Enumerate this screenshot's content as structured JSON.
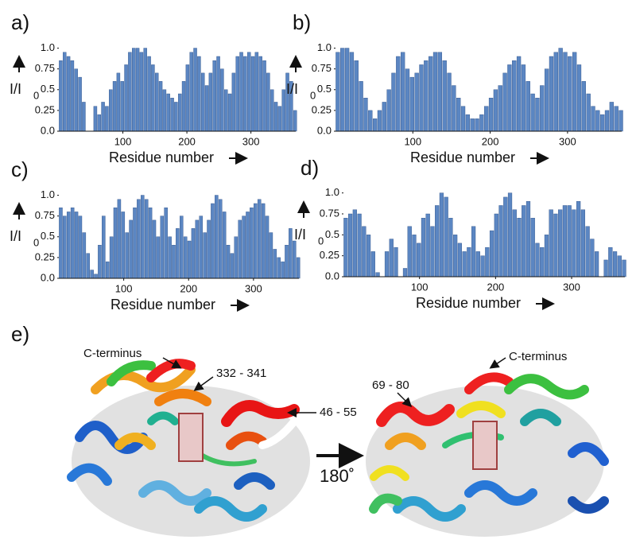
{
  "chart_data": [
    {
      "type": "bar",
      "label": "a)",
      "xlabel": "Residue number",
      "ylabel": "I/I",
      "ylabel_sub": "0",
      "color": "#5b86c2",
      "x": [
        3,
        9,
        15,
        21,
        27,
        33,
        39,
        45,
        51,
        57,
        63,
        69,
        75,
        81,
        87,
        93,
        99,
        105,
        111,
        117,
        123,
        129,
        135,
        141,
        147,
        153,
        159,
        165,
        171,
        177,
        183,
        189,
        195,
        201,
        207,
        213,
        219,
        225,
        231,
        237,
        243,
        249,
        255,
        261,
        267,
        273,
        279,
        285,
        291,
        297,
        303,
        309,
        315,
        321,
        327,
        333,
        339,
        345,
        351,
        357,
        363,
        369
      ],
      "values": [
        0.85,
        0.95,
        0.9,
        0.85,
        0.75,
        0.65,
        0.35,
        null,
        null,
        0.3,
        0.2,
        0.35,
        0.3,
        0.5,
        0.6,
        0.7,
        0.6,
        0.8,
        0.95,
        1.0,
        1.0,
        0.95,
        1.0,
        0.9,
        0.8,
        0.7,
        0.6,
        0.5,
        0.45,
        0.4,
        0.35,
        0.45,
        0.6,
        0.8,
        0.95,
        1.0,
        0.9,
        0.7,
        0.55,
        0.7,
        0.85,
        0.9,
        0.75,
        0.5,
        0.45,
        0.7,
        0.9,
        0.95,
        0.9,
        0.95,
        0.9,
        0.95,
        0.9,
        0.85,
        0.7,
        0.5,
        0.35,
        0.3,
        0.5,
        0.7,
        0.6,
        0.25
      ],
      "xlim": [
        0,
        370
      ],
      "xticks": [
        100,
        200,
        300
      ],
      "ylim": [
        0,
        1.12
      ],
      "yticks": [
        {
          "value": 0,
          "label": "0.0"
        },
        0.25,
        0.5,
        0.75,
        {
          "value": 1,
          "label": "1.0"
        }
      ]
    },
    {
      "type": "bar",
      "label": "b)",
      "xlabel": "Residue number",
      "ylabel": "I/I",
      "ylabel_sub": "0",
      "color": "#5b86c2",
      "x": [
        3,
        9,
        15,
        21,
        27,
        33,
        39,
        45,
        51,
        57,
        63,
        69,
        75,
        81,
        87,
        93,
        99,
        105,
        111,
        117,
        123,
        129,
        135,
        141,
        147,
        153,
        159,
        165,
        171,
        177,
        183,
        189,
        195,
        201,
        207,
        213,
        219,
        225,
        231,
        237,
        243,
        249,
        255,
        261,
        267,
        273,
        279,
        285,
        291,
        297,
        303,
        309,
        315,
        321,
        327,
        333,
        339,
        345,
        351,
        357,
        363,
        369
      ],
      "values": [
        0.95,
        1.0,
        1.0,
        0.95,
        0.85,
        0.6,
        0.4,
        0.25,
        0.15,
        0.25,
        0.35,
        0.5,
        0.7,
        0.9,
        0.95,
        0.75,
        0.65,
        0.7,
        0.8,
        0.85,
        0.9,
        0.95,
        0.95,
        0.85,
        0.7,
        0.55,
        0.4,
        0.3,
        0.2,
        0.15,
        0.15,
        0.2,
        0.3,
        0.4,
        0.5,
        0.55,
        0.7,
        0.8,
        0.85,
        0.9,
        0.8,
        0.6,
        0.45,
        0.4,
        0.55,
        0.75,
        0.9,
        0.95,
        1.0,
        0.95,
        0.9,
        0.95,
        0.8,
        0.6,
        0.45,
        0.3,
        0.25,
        0.2,
        0.25,
        0.35,
        0.3,
        0.25
      ],
      "xlim": [
        0,
        370
      ],
      "xticks": [
        100,
        200,
        300
      ],
      "ylim": [
        0,
        1.12
      ],
      "yticks": [
        {
          "value": 0,
          "label": "0.0"
        },
        0.25,
        0.5,
        0.75,
        {
          "value": 1,
          "label": "1.0"
        }
      ]
    },
    {
      "type": "bar",
      "label": "c)",
      "xlabel": "Residue number",
      "ylabel": "I/I",
      "ylabel_sub": "0",
      "color": "#5b86c2",
      "x": [
        3,
        9,
        15,
        21,
        27,
        33,
        39,
        45,
        51,
        57,
        63,
        69,
        75,
        81,
        87,
        93,
        99,
        105,
        111,
        117,
        123,
        129,
        135,
        141,
        147,
        153,
        159,
        165,
        171,
        177,
        183,
        189,
        195,
        201,
        207,
        213,
        219,
        225,
        231,
        237,
        243,
        249,
        255,
        261,
        267,
        273,
        279,
        285,
        291,
        297,
        303,
        309,
        315,
        321,
        327,
        333,
        339,
        345,
        351,
        357,
        363,
        369
      ],
      "values": [
        0.85,
        0.75,
        0.8,
        0.85,
        0.8,
        0.75,
        0.55,
        0.3,
        0.1,
        0.05,
        0.4,
        0.75,
        0.2,
        0.5,
        0.85,
        0.95,
        0.8,
        0.55,
        0.7,
        0.85,
        0.95,
        1.0,
        0.95,
        0.85,
        0.7,
        0.5,
        0.75,
        0.85,
        0.5,
        0.4,
        0.6,
        0.75,
        0.5,
        0.45,
        0.6,
        0.7,
        0.75,
        0.55,
        0.7,
        0.9,
        1.0,
        0.95,
        0.8,
        0.4,
        0.3,
        0.5,
        0.7,
        0.75,
        0.8,
        0.85,
        0.9,
        0.95,
        0.9,
        0.75,
        0.55,
        0.35,
        0.25,
        0.2,
        0.4,
        0.6,
        0.45,
        0.25
      ],
      "xlim": [
        0,
        370
      ],
      "xticks": [
        100,
        200,
        300
      ],
      "ylim": [
        0,
        1.12
      ],
      "yticks": [
        {
          "value": 0,
          "label": "0.0"
        },
        0.25,
        0.5,
        0.75,
        {
          "value": 1,
          "label": "1.0"
        }
      ]
    },
    {
      "type": "bar",
      "label": "d)",
      "xlabel": "Residue number",
      "ylabel": "I/I",
      "ylabel_sub": "0",
      "color": "#5b86c2",
      "x": [
        3,
        9,
        15,
        21,
        27,
        33,
        39,
        45,
        51,
        57,
        63,
        69,
        75,
        81,
        87,
        93,
        99,
        105,
        111,
        117,
        123,
        129,
        135,
        141,
        147,
        153,
        159,
        165,
        171,
        177,
        183,
        189,
        195,
        201,
        207,
        213,
        219,
        225,
        231,
        237,
        243,
        249,
        255,
        261,
        267,
        273,
        279,
        285,
        291,
        297,
        303,
        309,
        315,
        321,
        327,
        333,
        339,
        345,
        351,
        357,
        363,
        369
      ],
      "values": [
        0.7,
        0.75,
        0.8,
        0.75,
        0.6,
        0.5,
        0.3,
        0.05,
        null,
        0.3,
        0.45,
        0.35,
        null,
        0.1,
        0.6,
        0.5,
        0.4,
        0.7,
        0.75,
        0.6,
        0.85,
        1.0,
        0.95,
        0.7,
        0.5,
        0.4,
        0.3,
        0.35,
        0.6,
        0.3,
        0.25,
        0.35,
        0.55,
        0.75,
        0.85,
        0.95,
        1.0,
        0.8,
        0.7,
        0.85,
        0.9,
        0.7,
        0.4,
        0.35,
        0.5,
        0.8,
        0.75,
        0.8,
        0.85,
        0.85,
        0.8,
        0.9,
        0.8,
        0.6,
        0.45,
        0.3,
        null,
        0.2,
        0.35,
        0.3,
        0.25,
        0.2
      ],
      "xlim": [
        0,
        370
      ],
      "xticks": [
        100,
        200,
        300
      ],
      "ylim": [
        0,
        1.12
      ],
      "yticks": [
        {
          "value": 0,
          "label": "0.0"
        },
        0.25,
        0.5,
        0.75,
        {
          "value": 1,
          "label": "1.0"
        }
      ]
    }
  ],
  "structure": {
    "label": "e)",
    "left_annotations": [
      "C-terminus",
      "332 - 341",
      "46 - 55"
    ],
    "right_annotations": [
      "69 - 80",
      "C-terminus"
    ],
    "rotation": "180˚"
  }
}
